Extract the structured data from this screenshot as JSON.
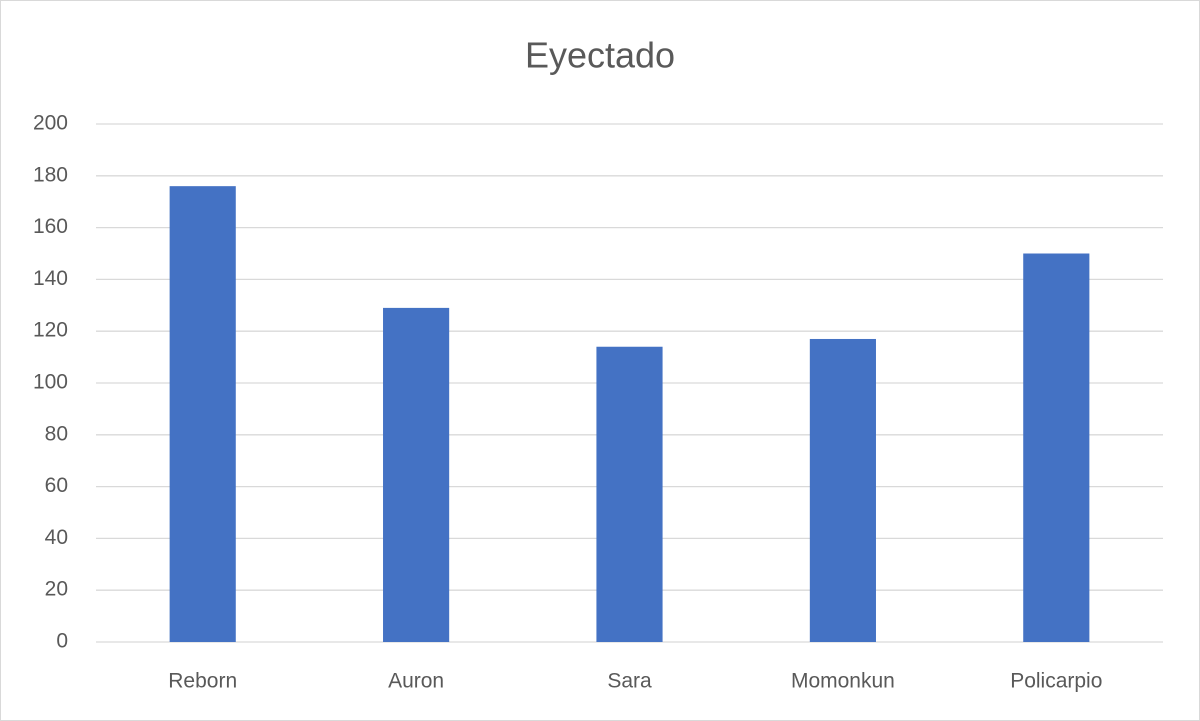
{
  "chart_data": {
    "type": "bar",
    "title": "Eyectado",
    "categories": [
      "Reborn",
      "Auron",
      "Sara",
      "Momonkun",
      "Policarpio"
    ],
    "values": [
      176,
      129,
      114,
      117,
      150
    ],
    "color": "#4472c4",
    "ylim": [
      0,
      200
    ],
    "yticks": [
      0,
      20,
      40,
      60,
      80,
      100,
      120,
      140,
      160,
      180,
      200
    ],
    "grid": true
  }
}
